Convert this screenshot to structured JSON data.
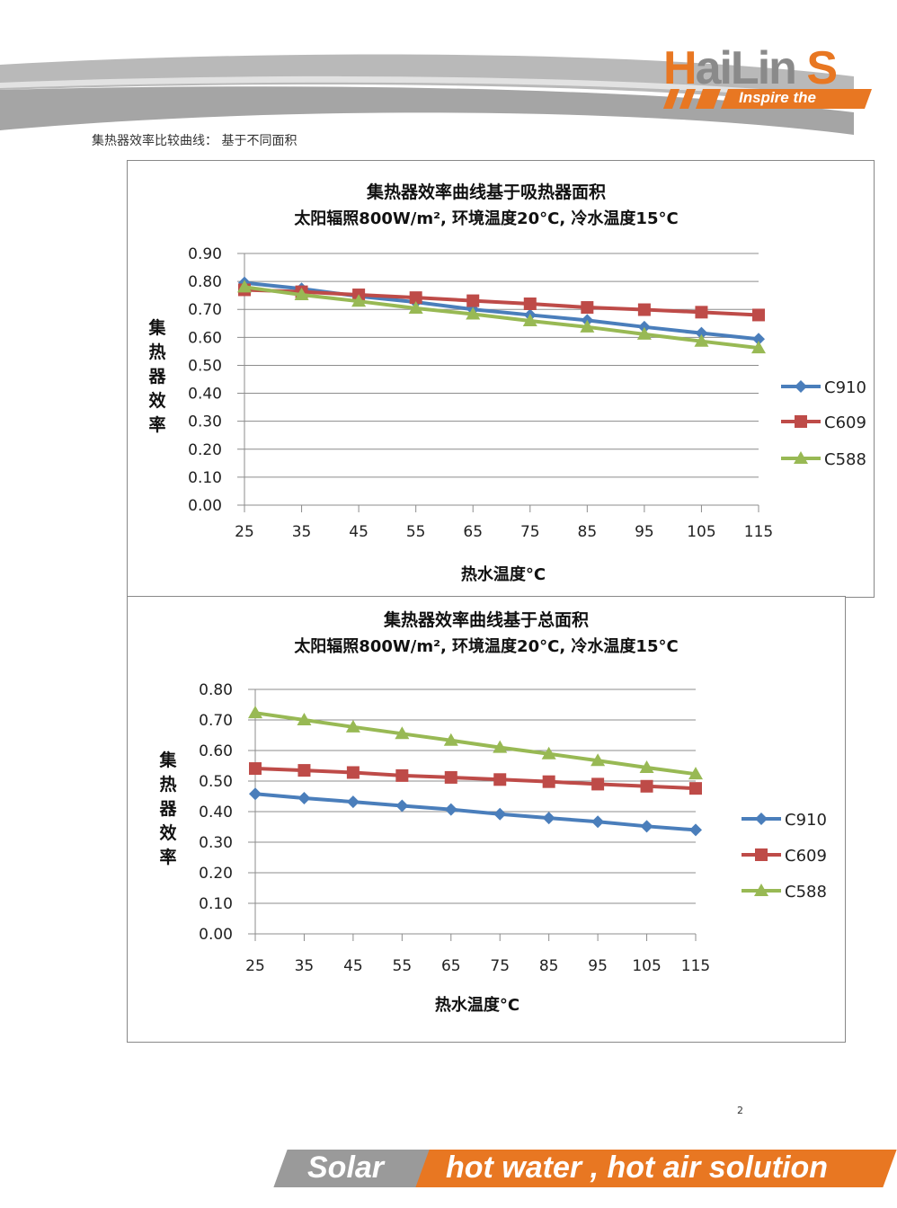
{
  "header": {
    "logo_text": "HaiLin S",
    "logo_tagline": "Inspire the",
    "subtitle": "集热器效率比较曲线：  基于不同面积"
  },
  "colors": {
    "brand_orange": "#e87722",
    "C910": "#4a7ebb",
    "C609": "#be4b48",
    "C588": "#98b954",
    "grid": "#888888"
  },
  "chart_data": [
    {
      "type": "line",
      "title": "集热器效率曲线基于吸热器面积",
      "subtitle": "太阳辐照800W/m², 环境温度20°C, 冷水温度15°C",
      "xlabel": "热水温度°C",
      "ylabel": "集热器效率",
      "ylim": [
        0,
        0.9
      ],
      "ystep": 0.1,
      "grid": true,
      "legend": "right",
      "categories": [
        "25",
        "35",
        "45",
        "55",
        "65",
        "75",
        "85",
        "95",
        "105",
        "115"
      ],
      "series": [
        {
          "name": "C910",
          "marker": "diamond",
          "values": [
            0.795,
            0.774,
            0.747,
            0.726,
            0.7,
            0.68,
            0.661,
            0.637,
            0.615,
            0.594
          ]
        },
        {
          "name": "C609",
          "marker": "square",
          "values": [
            0.77,
            0.763,
            0.752,
            0.742,
            0.731,
            0.72,
            0.707,
            0.699,
            0.69,
            0.68
          ]
        },
        {
          "name": "C588",
          "marker": "triangle",
          "values": [
            0.78,
            0.752,
            0.729,
            0.704,
            0.683,
            0.659,
            0.637,
            0.611,
            0.586,
            0.562
          ]
        }
      ]
    },
    {
      "type": "line",
      "title": "集热器效率曲线基于总面积",
      "subtitle": "太阳辐照800W/m², 环境温度20°C, 冷水温度15°C",
      "xlabel": "热水温度°C",
      "ylabel": "集热器效率",
      "ylim": [
        0,
        0.8
      ],
      "ystep": 0.1,
      "grid": true,
      "legend": "right",
      "categories": [
        "25",
        "35",
        "45",
        "55",
        "65",
        "75",
        "85",
        "95",
        "105",
        "115"
      ],
      "series": [
        {
          "name": "C910",
          "marker": "diamond",
          "values": [
            0.458,
            0.444,
            0.432,
            0.419,
            0.407,
            0.392,
            0.379,
            0.367,
            0.352,
            0.34
          ]
        },
        {
          "name": "C609",
          "marker": "square",
          "values": [
            0.541,
            0.535,
            0.528,
            0.518,
            0.512,
            0.505,
            0.498,
            0.49,
            0.483,
            0.476
          ]
        },
        {
          "name": "C588",
          "marker": "triangle",
          "values": [
            0.723,
            0.7,
            0.677,
            0.655,
            0.633,
            0.61,
            0.589,
            0.567,
            0.544,
            0.523
          ]
        }
      ]
    }
  ],
  "page": {
    "number": "2"
  },
  "footer": {
    "left": "Solar",
    "right": "hot water , hot air solution"
  }
}
